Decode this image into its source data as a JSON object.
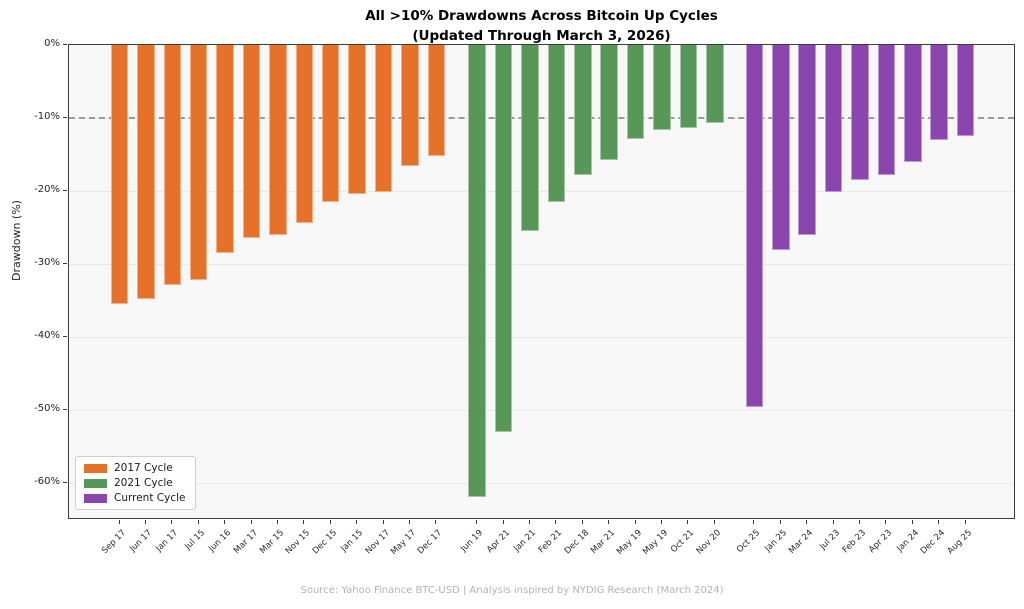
{
  "title": {
    "line1": "All >10% Drawdowns Across Bitcoin Up Cycles",
    "line2": "(Updated Through March 3, 2026)"
  },
  "ylabel": "Drawdown (%)",
  "footer": "Source: Yahoo Finance BTC-USD | Analysis inspired by NYDIG Research (March 2024)",
  "legend": [
    {
      "label": "2017 Cycle",
      "color": "#e6722a"
    },
    {
      "label": "2021 Cycle",
      "color": "#579757"
    },
    {
      "label": "Current Cycle",
      "color": "#8a45ae"
    }
  ],
  "chart_data": {
    "type": "bar",
    "title": "All >10% Drawdowns Across Bitcoin Up Cycles (Updated Through March 3, 2026)",
    "xlabel": "",
    "ylabel": "Drawdown (%)",
    "ylim": [
      -65,
      0
    ],
    "yticks": [
      {
        "value": 0,
        "label": "0%"
      },
      {
        "value": -10,
        "label": "-10%"
      },
      {
        "value": -20,
        "label": "-20%"
      },
      {
        "value": -30,
        "label": "-30%"
      },
      {
        "value": -40,
        "label": "-40%"
      },
      {
        "value": -50,
        "label": "-50%"
      },
      {
        "value": -60,
        "label": "-60%"
      }
    ],
    "threshold_line": -10,
    "grid": true,
    "legend_position": "lower left",
    "series": [
      {
        "name": "2017 Cycle",
        "color": "#e6722a",
        "categories": [
          "Sep 17",
          "Jun 17",
          "Jan 17",
          "Jul 15",
          "Jun 16",
          "Mar 17",
          "Mar 15",
          "Nov 15",
          "Dec 15",
          "Jan 15",
          "Nov 17",
          "May 17",
          "Dec 17"
        ],
        "values": [
          -35.5,
          -34.8,
          -32.8,
          -32.2,
          -28.5,
          -26.4,
          -26.0,
          -24.4,
          -21.5,
          -20.4,
          -20.1,
          -16.6,
          -15.2
        ]
      },
      {
        "name": "2021 Cycle",
        "color": "#579757",
        "categories": [
          "Jun 19",
          "Apr 21",
          "Jan 21",
          "Feb 21",
          "Dec 18",
          "Mar 21",
          "May 19",
          "May 19",
          "Oct 21",
          "Nov 20"
        ],
        "values": [
          -61.9,
          -53.0,
          -25.4,
          -21.5,
          -17.8,
          -15.7,
          -12.8,
          -11.6,
          -11.4,
          -10.7
        ]
      },
      {
        "name": "Current Cycle",
        "color": "#8a45ae",
        "categories": [
          "Oct 25",
          "Jan 25",
          "Mar 24",
          "Jul 23",
          "Feb 23",
          "Apr 23",
          "Jan 24",
          "Dec 24",
          "Aug 25"
        ],
        "values": [
          -49.5,
          -28.1,
          -26.0,
          -20.1,
          -18.5,
          -17.8,
          -16.0,
          -13.0,
          -12.4
        ]
      }
    ]
  }
}
